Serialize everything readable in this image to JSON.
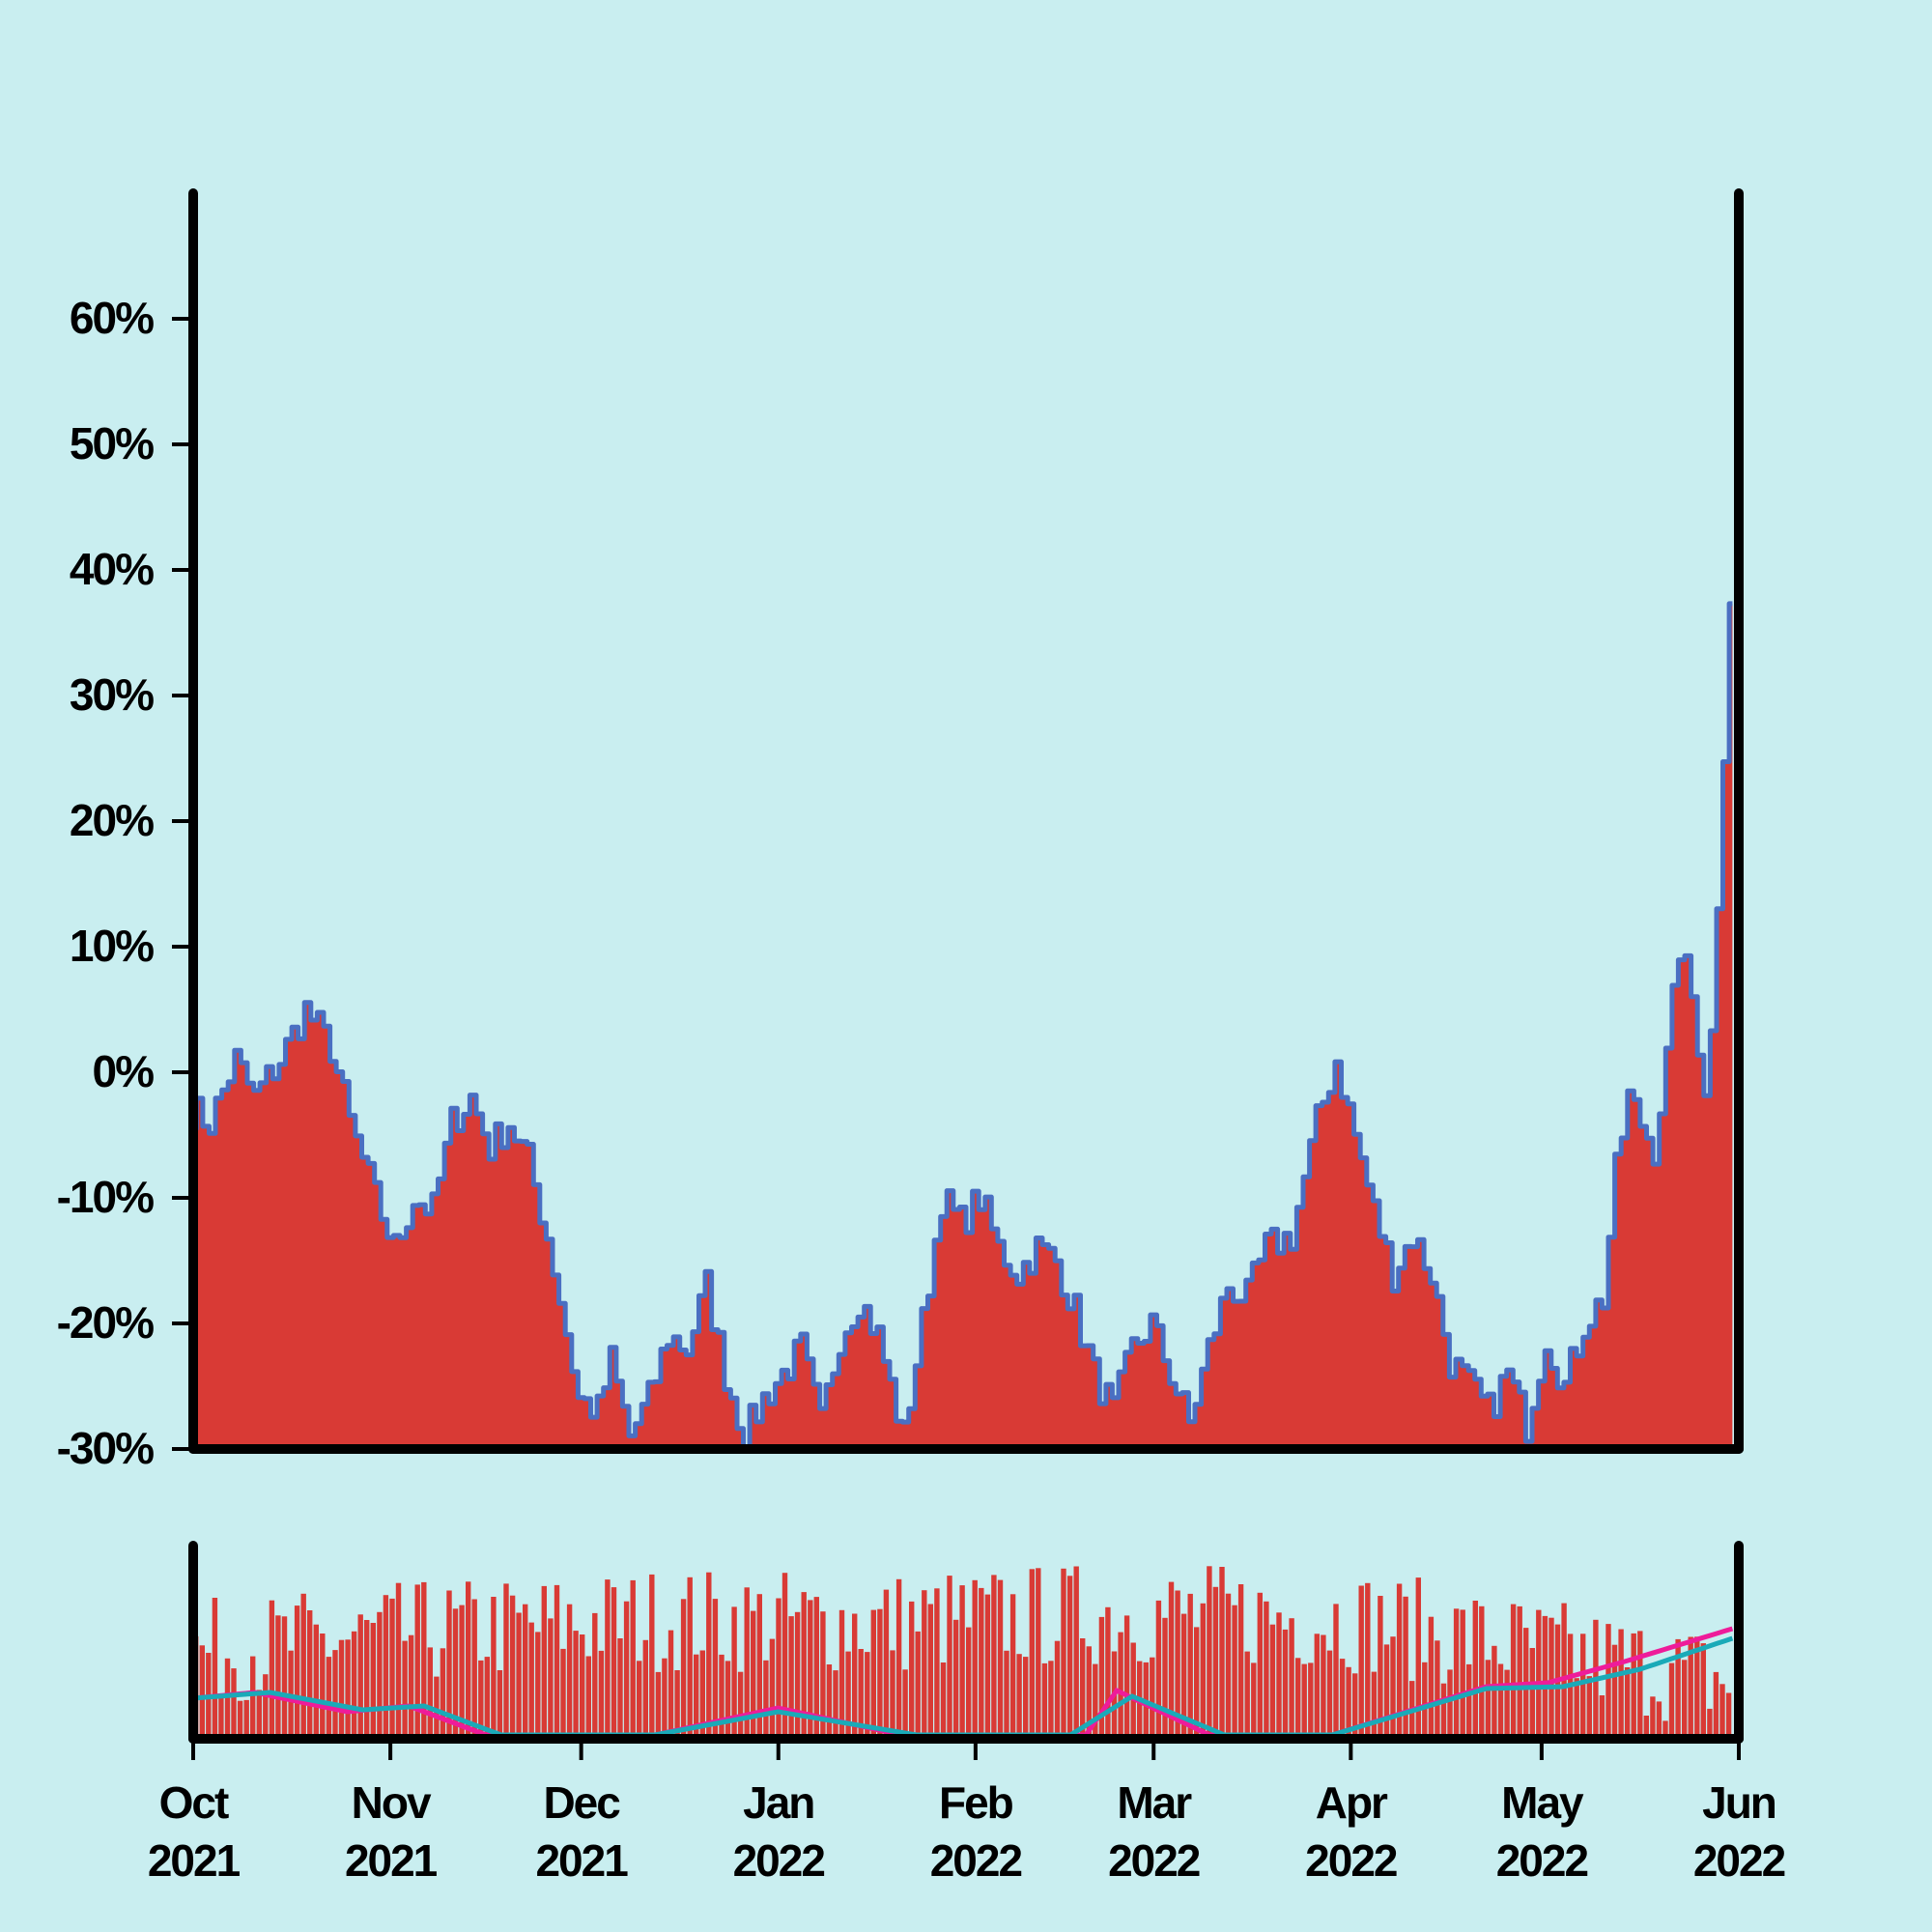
{
  "colors": {
    "background": "#c9eef0",
    "area_fill": "#d93a35",
    "price_line": "#4a6fc2",
    "volume_bars": "#d93a35",
    "ma_short": "#ee1c9a",
    "ma_long": "#1aaab8",
    "axis": "#000000"
  },
  "chart_data": {
    "type": "area",
    "main_panel": {
      "series_type": "area",
      "y_ticks": [
        {
          "value": 60,
          "label": "60%"
        },
        {
          "value": 50,
          "label": "50%"
        },
        {
          "value": 40,
          "label": "40%"
        },
        {
          "value": 30,
          "label": "30%"
        },
        {
          "value": 20,
          "label": "20%"
        },
        {
          "value": 10,
          "label": "10%"
        },
        {
          "value": 0,
          "label": "0%"
        },
        {
          "value": -10,
          "label": "-10%"
        },
        {
          "value": -20,
          "label": "-20%"
        },
        {
          "value": -30,
          "label": "-30%"
        }
      ],
      "ylim": [
        -30,
        70
      ],
      "start_date": "2021-10-01",
      "end_date": "2022-05-31",
      "keypoints": [
        [
          "2021-10-01",
          -3
        ],
        [
          "2021-10-04",
          -4
        ],
        [
          "2021-10-08",
          1
        ],
        [
          "2021-10-11",
          -2
        ],
        [
          "2021-10-15",
          1
        ],
        [
          "2021-10-19",
          5
        ],
        [
          "2021-10-23",
          2
        ],
        [
          "2021-10-26",
          -4
        ],
        [
          "2021-10-30",
          -10
        ],
        [
          "2021-11-02",
          -14
        ],
        [
          "2021-11-05",
          -10
        ],
        [
          "2021-11-08",
          -11
        ],
        [
          "2021-11-11",
          -4
        ],
        [
          "2021-11-14",
          -2
        ],
        [
          "2021-11-17",
          -6
        ],
        [
          "2021-11-20",
          -4
        ],
        [
          "2021-11-23",
          -7
        ],
        [
          "2021-11-26",
          -13
        ],
        [
          "2021-11-28",
          -18
        ],
        [
          "2021-12-01",
          -26
        ],
        [
          "2021-12-04",
          -27
        ],
        [
          "2021-12-06",
          -23
        ],
        [
          "2021-12-09",
          -29
        ],
        [
          "2021-12-12",
          -26
        ],
        [
          "2021-12-15",
          -21
        ],
        [
          "2021-12-18",
          -22
        ],
        [
          "2021-12-21",
          -17
        ],
        [
          "2021-12-24",
          -24
        ],
        [
          "2021-12-27",
          -29
        ],
        [
          "2021-12-30",
          -26
        ],
        [
          "2022-01-02",
          -24
        ],
        [
          "2022-01-05",
          -22
        ],
        [
          "2022-01-08",
          -28
        ],
        [
          "2022-01-11",
          -21
        ],
        [
          "2022-01-14",
          -18
        ],
        [
          "2022-01-17",
          -21
        ],
        [
          "2022-01-21",
          -29
        ],
        [
          "2022-01-24",
          -20
        ],
        [
          "2022-01-27",
          -10
        ],
        [
          "2022-01-30",
          -12
        ],
        [
          "2022-02-02",
          -10
        ],
        [
          "2022-02-05",
          -14
        ],
        [
          "2022-02-08",
          -16
        ],
        [
          "2022-02-11",
          -14
        ],
        [
          "2022-02-14",
          -15
        ],
        [
          "2022-02-17",
          -19
        ],
        [
          "2022-02-20",
          -24
        ],
        [
          "2022-02-23",
          -27
        ],
        [
          "2022-02-26",
          -22
        ],
        [
          "2022-03-01",
          -20
        ],
        [
          "2022-03-04",
          -24
        ],
        [
          "2022-03-07",
          -28
        ],
        [
          "2022-03-10",
          -22
        ],
        [
          "2022-03-13",
          -17
        ],
        [
          "2022-03-16",
          -18
        ],
        [
          "2022-03-19",
          -14
        ],
        [
          "2022-03-23",
          -13
        ],
        [
          "2022-03-27",
          -4
        ],
        [
          "2022-03-30",
          1
        ],
        [
          "2022-04-02",
          -5
        ],
        [
          "2022-04-05",
          -11
        ],
        [
          "2022-04-08",
          -16
        ],
        [
          "2022-04-11",
          -13
        ],
        [
          "2022-04-14",
          -16
        ],
        [
          "2022-04-17",
          -23
        ],
        [
          "2022-04-20",
          -25
        ],
        [
          "2022-04-23",
          -27
        ],
        [
          "2022-04-26",
          -24
        ],
        [
          "2022-04-29",
          -28
        ],
        [
          "2022-05-02",
          -21
        ],
        [
          "2022-05-05",
          -25
        ],
        [
          "2022-05-08",
          -20
        ],
        [
          "2022-05-11",
          -18
        ],
        [
          "2022-05-13",
          -8
        ],
        [
          "2022-05-15",
          -2
        ],
        [
          "2022-05-17",
          -4
        ],
        [
          "2022-05-19",
          -6
        ],
        [
          "2022-05-21",
          1
        ],
        [
          "2022-05-23",
          10
        ],
        [
          "2022-05-25",
          6
        ],
        [
          "2022-05-27",
          -1
        ],
        [
          "2022-05-28",
          3
        ],
        [
          "2022-05-29",
          14
        ],
        [
          "2022-05-30",
          26
        ],
        [
          "2022-05-31",
          38
        ]
      ]
    },
    "volume_panel": {
      "series": [
        {
          "type": "bar"
        },
        {
          "type": "line"
        },
        {
          "type": "line"
        }
      ],
      "volume_profile": [
        [
          0,
          0.45
        ],
        [
          0.15,
          0.55
        ],
        [
          0.3,
          0.62
        ],
        [
          0.45,
          0.6
        ],
        [
          0.6,
          0.65
        ],
        [
          0.75,
          0.62
        ],
        [
          0.85,
          0.5
        ],
        [
          1.0,
          0.3
        ]
      ],
      "ma_short_profile": [
        [
          0,
          0.19
        ],
        [
          0.04,
          0.22
        ],
        [
          0.1,
          0.12
        ],
        [
          0.14,
          0.15
        ],
        [
          0.19,
          0.0
        ],
        [
          0.3,
          0.0
        ],
        [
          0.38,
          0.14
        ],
        [
          0.46,
          0.0
        ],
        [
          0.58,
          0.0
        ],
        [
          0.6,
          0.23
        ],
        [
          0.66,
          0.0
        ],
        [
          0.74,
          0.0
        ],
        [
          0.84,
          0.25
        ],
        [
          0.88,
          0.27
        ],
        [
          0.93,
          0.38
        ],
        [
          1.0,
          0.55
        ]
      ],
      "ma_long_profile": [
        [
          0,
          0.19
        ],
        [
          0.05,
          0.22
        ],
        [
          0.11,
          0.13
        ],
        [
          0.15,
          0.15
        ],
        [
          0.2,
          0.0
        ],
        [
          0.3,
          0.0
        ],
        [
          0.38,
          0.12
        ],
        [
          0.47,
          0.0
        ],
        [
          0.57,
          0.0
        ],
        [
          0.61,
          0.2
        ],
        [
          0.67,
          0.0
        ],
        [
          0.74,
          0.0
        ],
        [
          0.84,
          0.24
        ],
        [
          0.89,
          0.25
        ],
        [
          0.94,
          0.34
        ],
        [
          1.0,
          0.5
        ]
      ]
    },
    "x_ticks": [
      {
        "date": "2021-10-01",
        "month": "Oct",
        "year": "2021"
      },
      {
        "date": "2021-11-01",
        "month": "Nov",
        "year": "2021"
      },
      {
        "date": "2021-12-01",
        "month": "Dec",
        "year": "2021"
      },
      {
        "date": "2022-01-01",
        "month": "Jan",
        "year": "2022"
      },
      {
        "date": "2022-02-01",
        "month": "Feb",
        "year": "2022"
      },
      {
        "date": "2022-03-01",
        "month": "Mar",
        "year": "2022"
      },
      {
        "date": "2022-04-01",
        "month": "Apr",
        "year": "2022"
      },
      {
        "date": "2022-05-01",
        "month": "May",
        "year": "2022"
      },
      {
        "date": "2022-06-01",
        "month": "Jun",
        "year": "2022"
      }
    ],
    "title": "",
    "xlabel": "",
    "ylabel": "",
    "grid": false,
    "legend": "none"
  }
}
